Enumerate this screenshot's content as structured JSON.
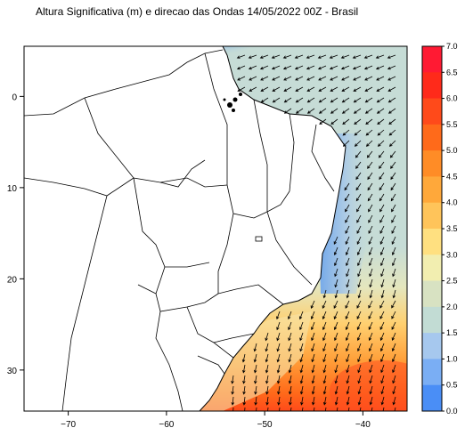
{
  "title": "Altura Significativa (m) e direcao das Ondas 14/05/2022 00Z - Brasil",
  "axes": {
    "x_ticks": [
      {
        "value": -70,
        "label": "−70"
      },
      {
        "value": -60,
        "label": "−60"
      },
      {
        "value": -50,
        "label": "−50"
      },
      {
        "value": -40,
        "label": "−40"
      }
    ],
    "y_ticks": [
      {
        "value": 0,
        "label": "0"
      },
      {
        "value": -10,
        "label": "10"
      },
      {
        "value": -20,
        "label": "20"
      },
      {
        "value": -30,
        "label": "30"
      }
    ],
    "lon_range": [
      -74.5,
      -35.5
    ],
    "lat_range": [
      -34.5,
      5.5
    ]
  },
  "colorbar": {
    "labels": [
      "7.0",
      "6.5",
      "6.0",
      "5.5",
      "5.0",
      "4.5",
      "4.0",
      "3.5",
      "3.0",
      "2.5",
      "2.0",
      "1.5",
      "1.0",
      "0.5",
      "0.0"
    ],
    "colors": [
      "#ff1a33",
      "#ff2a1a",
      "#ff4a1a",
      "#ff6a1a",
      "#ff8c26",
      "#ffa83a",
      "#ffc45a",
      "#ffe080",
      "#f2eeb0",
      "#d8e2c2",
      "#c2dcd4",
      "#a6c8ee",
      "#7aaef4",
      "#4a8ef6",
      "#1e6ef8"
    ]
  },
  "ocean_colors": {
    "north_coast": "#3d85f0",
    "north_open": "#c6dcd6",
    "east_coast": "#6aa4f2",
    "south_mid": "#f2e4a0",
    "south_high": "#ff7a20",
    "south_peak": "#ff4a1a"
  }
}
